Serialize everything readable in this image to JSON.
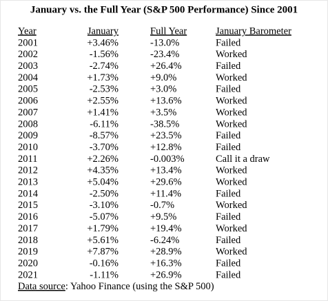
{
  "title": "January vs. the Full Year (S&P 500 Performance) Since 2001",
  "table": {
    "headers": [
      "Year",
      "January",
      "Full Year",
      "January Barometer"
    ],
    "rows": [
      [
        "2001",
        "+3.46%",
        "-13.0%",
        "Failed"
      ],
      [
        "2002",
        "-1.56%",
        "-23.4%",
        "Worked"
      ],
      [
        "2003",
        "-2.74%",
        "+26.4%",
        "Failed"
      ],
      [
        "2004",
        "+1.73%",
        "+9.0%",
        "Worked"
      ],
      [
        "2005",
        "-2.53%",
        "+3.0%",
        "Failed"
      ],
      [
        "2006",
        "+2.55%",
        "+13.6%",
        "Worked"
      ],
      [
        "2007",
        "+1.41%",
        "+3.5%",
        "Worked"
      ],
      [
        "2008",
        "-6.11%",
        "-38.5%",
        "Worked"
      ],
      [
        "2009",
        "-8.57%",
        "+23.5%",
        "Failed"
      ],
      [
        "2010",
        "-3.70%",
        "+12.8%",
        "Failed"
      ],
      [
        "2011",
        "+2.26%",
        "-0.003%",
        "Call it a draw"
      ],
      [
        "2012",
        "+4.35%",
        "+13.4%",
        "Worked"
      ],
      [
        "2013",
        "+5.04%",
        "+29.6%",
        "Worked"
      ],
      [
        "2014",
        "-2.50%",
        "+11.4%",
        "Failed"
      ],
      [
        "2015",
        "-3.10%",
        "-0.7%",
        "Worked"
      ],
      [
        "2016",
        "-5.07%",
        "+9.5%",
        "Failed"
      ],
      [
        "2017",
        "+1.79%",
        "+19.4%",
        "Worked"
      ],
      [
        "2018",
        "+5.61%",
        "-6.24%",
        "Failed"
      ],
      [
        "2019",
        "+7.87%",
        "+28.9%",
        "Worked"
      ],
      [
        "2020",
        "-0.16%",
        "+16.3%",
        "Failed"
      ],
      [
        "2021",
        "-1.11%",
        "+26.9%",
        "Failed"
      ]
    ]
  },
  "source": {
    "label": "Data source",
    "text": ": Yahoo Finance (using the S&P 500)"
  }
}
